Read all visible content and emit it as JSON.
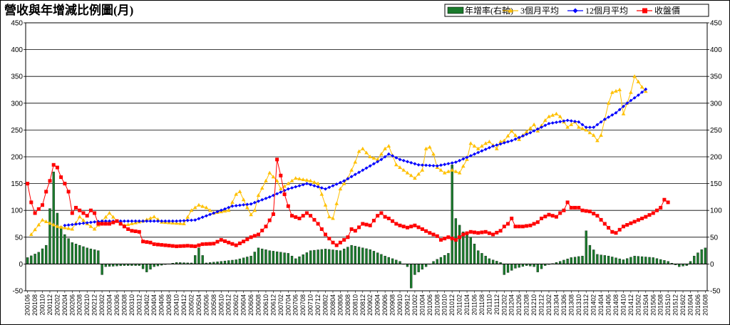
{
  "chart_data": {
    "type": "bar-line-combo",
    "title": "營收與年增減比例圖(月)",
    "legend_position": "top-right",
    "grid": true,
    "y_left": {
      "min": -50,
      "max": 450,
      "ticks": [
        -50,
        0,
        50,
        100,
        150,
        200,
        250,
        300,
        350,
        400,
        450
      ]
    },
    "y_right": {
      "min": -50,
      "max": 450,
      "ticks": [
        -50,
        0,
        50,
        100,
        150,
        200,
        250,
        300,
        350,
        400,
        450
      ]
    },
    "start_month": "200106",
    "months_count": 183,
    "x_tick_labels": [
      "200106",
      "200108",
      "200110",
      "200112",
      "200202",
      "200204",
      "200206",
      "200208",
      "200210",
      "200212",
      "200302",
      "200304",
      "200306",
      "200308",
      "200310",
      "200312",
      "200402",
      "200404",
      "200406",
      "200408",
      "200410",
      "200412",
      "200502",
      "200504",
      "200506",
      "200508",
      "200510",
      "200512",
      "200602",
      "200604",
      "200606",
      "200608",
      "200610",
      "200612",
      "200702",
      "200704",
      "200706",
      "200708",
      "200710",
      "200712",
      "200802",
      "200804",
      "200806",
      "200808",
      "200810",
      "200812",
      "200902",
      "200904",
      "200906",
      "200908",
      "200910",
      "200912",
      "201002",
      "201004",
      "201006",
      "201008",
      "201010",
      "201012",
      "201102",
      "201104",
      "201106",
      "201108",
      "201110",
      "201112",
      "201202",
      "201204",
      "201206",
      "201208",
      "201210",
      "201212",
      "201302",
      "201304",
      "201306",
      "201308",
      "201310",
      "201312",
      "201402",
      "201404",
      "201406",
      "201408",
      "201410",
      "201412",
      "201502",
      "201504",
      "201506",
      "201508",
      "201510",
      "201512",
      "201602",
      "201604",
      "201606",
      "201608"
    ],
    "series": [
      {
        "name": "年增率(右軸)",
        "kind": "bar",
        "axis": "right",
        "color": "#1a7a2c",
        "anchors": [
          [
            0,
            12
          ],
          [
            3,
            22
          ],
          [
            5,
            35
          ],
          [
            7,
            172
          ],
          [
            8,
            95
          ],
          [
            9,
            70
          ],
          [
            10,
            55
          ],
          [
            12,
            40
          ],
          [
            16,
            30
          ],
          [
            19,
            25
          ],
          [
            20,
            -20
          ],
          [
            21,
            -5
          ],
          [
            26,
            -3
          ],
          [
            30,
            -3
          ],
          [
            32,
            -15
          ],
          [
            34,
            -5
          ],
          [
            40,
            3
          ],
          [
            44,
            2
          ],
          [
            46,
            30
          ],
          [
            48,
            2
          ],
          [
            56,
            8
          ],
          [
            60,
            15
          ],
          [
            62,
            30
          ],
          [
            65,
            25
          ],
          [
            70,
            20
          ],
          [
            72,
            10
          ],
          [
            76,
            25
          ],
          [
            80,
            28
          ],
          [
            84,
            25
          ],
          [
            87,
            35
          ],
          [
            92,
            27
          ],
          [
            96,
            15
          ],
          [
            100,
            5
          ],
          [
            102,
            -5
          ],
          [
            103,
            -45
          ],
          [
            104,
            -20
          ],
          [
            106,
            -10
          ],
          [
            109,
            5
          ],
          [
            113,
            20
          ],
          [
            114,
            185
          ],
          [
            115,
            85
          ],
          [
            117,
            60
          ],
          [
            119,
            50
          ],
          [
            121,
            25
          ],
          [
            124,
            10
          ],
          [
            127,
            3
          ],
          [
            128,
            -20
          ],
          [
            131,
            -8
          ],
          [
            134,
            -3
          ],
          [
            136,
            -5
          ],
          [
            137,
            -15
          ],
          [
            139,
            -3
          ],
          [
            143,
            5
          ],
          [
            146,
            12
          ],
          [
            149,
            15
          ],
          [
            150,
            62
          ],
          [
            151,
            35
          ],
          [
            153,
            18
          ],
          [
            156,
            15
          ],
          [
            160,
            8
          ],
          [
            163,
            15
          ],
          [
            168,
            12
          ],
          [
            172,
            5
          ],
          [
            175,
            -5
          ],
          [
            177,
            -3
          ],
          [
            178,
            5
          ],
          [
            179,
            15
          ],
          [
            181,
            27
          ],
          [
            182,
            30
          ]
        ]
      },
      {
        "name": "3個月平均",
        "kind": "line",
        "axis": "left",
        "color": "#ffc000",
        "anchors": [
          [
            1,
            55
          ],
          [
            4,
            82
          ],
          [
            8,
            70
          ],
          [
            12,
            65
          ],
          [
            14,
            88
          ],
          [
            16,
            75
          ],
          [
            18,
            65
          ],
          [
            22,
            95
          ],
          [
            24,
            80
          ],
          [
            26,
            72
          ],
          [
            31,
            80
          ],
          [
            34,
            88
          ],
          [
            36,
            78
          ],
          [
            42,
            75
          ],
          [
            44,
            100
          ],
          [
            46,
            110
          ],
          [
            48,
            105
          ],
          [
            50,
            95
          ],
          [
            54,
            100
          ],
          [
            56,
            130
          ],
          [
            57,
            135
          ],
          [
            59,
            105
          ],
          [
            60,
            92
          ],
          [
            61,
            100
          ],
          [
            62,
            128
          ],
          [
            64,
            155
          ],
          [
            65,
            170
          ],
          [
            67,
            155
          ],
          [
            68,
            140
          ],
          [
            70,
            150
          ],
          [
            72,
            160
          ],
          [
            76,
            155
          ],
          [
            78,
            150
          ],
          [
            80,
            110
          ],
          [
            81,
            88
          ],
          [
            82,
            85
          ],
          [
            84,
            140
          ],
          [
            86,
            160
          ],
          [
            88,
            190
          ],
          [
            89,
            210
          ],
          [
            90,
            215
          ],
          [
            92,
            200
          ],
          [
            94,
            195
          ],
          [
            96,
            215
          ],
          [
            97,
            220
          ],
          [
            99,
            185
          ],
          [
            102,
            170
          ],
          [
            104,
            160
          ],
          [
            106,
            175
          ],
          [
            107,
            215
          ],
          [
            108,
            218
          ],
          [
            109,
            205
          ],
          [
            110,
            180
          ],
          [
            112,
            170
          ],
          [
            114,
            175
          ],
          [
            116,
            170
          ],
          [
            118,
            195
          ],
          [
            119,
            225
          ],
          [
            121,
            215
          ],
          [
            123,
            225
          ],
          [
            124,
            228
          ],
          [
            126,
            215
          ],
          [
            127,
            228
          ],
          [
            128,
            230
          ],
          [
            130,
            248
          ],
          [
            132,
            232
          ],
          [
            133,
            240
          ],
          [
            136,
            260
          ],
          [
            137,
            248
          ],
          [
            139,
            268
          ],
          [
            140,
            275
          ],
          [
            142,
            280
          ],
          [
            143,
            275
          ],
          [
            145,
            255
          ],
          [
            147,
            265
          ],
          [
            148,
            255
          ],
          [
            150,
            250
          ],
          [
            152,
            240
          ],
          [
            153,
            230
          ],
          [
            154,
            240
          ],
          [
            155,
            270
          ],
          [
            156,
            300
          ],
          [
            157,
            320
          ],
          [
            159,
            325
          ],
          [
            160,
            280
          ],
          [
            162,
            320
          ],
          [
            163,
            350
          ],
          [
            165,
            330
          ],
          [
            166,
            322
          ]
        ]
      },
      {
        "name": "12個月平均",
        "kind": "line",
        "axis": "left",
        "color": "#0000ff",
        "anchors": [
          [
            10,
            72
          ],
          [
            20,
            80
          ],
          [
            30,
            80
          ],
          [
            40,
            80
          ],
          [
            45,
            82
          ],
          [
            50,
            95
          ],
          [
            55,
            108
          ],
          [
            60,
            112
          ],
          [
            65,
            125
          ],
          [
            70,
            140
          ],
          [
            75,
            150
          ],
          [
            80,
            140
          ],
          [
            85,
            155
          ],
          [
            90,
            175
          ],
          [
            95,
            195
          ],
          [
            97,
            205
          ],
          [
            100,
            195
          ],
          [
            105,
            185
          ],
          [
            110,
            183
          ],
          [
            115,
            190
          ],
          [
            120,
            205
          ],
          [
            125,
            220
          ],
          [
            130,
            230
          ],
          [
            135,
            245
          ],
          [
            140,
            262
          ],
          [
            145,
            268
          ],
          [
            148,
            265
          ],
          [
            150,
            255
          ],
          [
            152,
            255
          ],
          [
            155,
            270
          ],
          [
            158,
            282
          ],
          [
            161,
            300
          ],
          [
            164,
            315
          ],
          [
            166,
            326
          ]
        ]
      },
      {
        "name": "收盤價",
        "kind": "line",
        "axis": "left",
        "color": "#ff0000",
        "anchors": [
          [
            0,
            150
          ],
          [
            1,
            115
          ],
          [
            2,
            95
          ],
          [
            4,
            110
          ],
          [
            5,
            135
          ],
          [
            6,
            155
          ],
          [
            7,
            185
          ],
          [
            8,
            180
          ],
          [
            9,
            162
          ],
          [
            10,
            150
          ],
          [
            11,
            135
          ],
          [
            12,
            95
          ],
          [
            13,
            105
          ],
          [
            14,
            100
          ],
          [
            16,
            90
          ],
          [
            17,
            100
          ],
          [
            18,
            95
          ],
          [
            19,
            75
          ],
          [
            22,
            75
          ],
          [
            24,
            80
          ],
          [
            25,
            75
          ],
          [
            27,
            65
          ],
          [
            28,
            62
          ],
          [
            30,
            60
          ],
          [
            31,
            42
          ],
          [
            33,
            40
          ],
          [
            34,
            37
          ],
          [
            37,
            35
          ],
          [
            40,
            33
          ],
          [
            43,
            34
          ],
          [
            45,
            33
          ],
          [
            47,
            37
          ],
          [
            50,
            38
          ],
          [
            52,
            45
          ],
          [
            54,
            40
          ],
          [
            56,
            35
          ],
          [
            58,
            42
          ],
          [
            60,
            50
          ],
          [
            62,
            55
          ],
          [
            64,
            70
          ],
          [
            66,
            93
          ],
          [
            67,
            195
          ],
          [
            68,
            165
          ],
          [
            69,
            130
          ],
          [
            70,
            108
          ],
          [
            71,
            90
          ],
          [
            73,
            85
          ],
          [
            75,
            95
          ],
          [
            76,
            90
          ],
          [
            78,
            75
          ],
          [
            80,
            55
          ],
          [
            82,
            40
          ],
          [
            83,
            35
          ],
          [
            84,
            40
          ],
          [
            86,
            50
          ],
          [
            87,
            65
          ],
          [
            88,
            62
          ],
          [
            90,
            75
          ],
          [
            92,
            72
          ],
          [
            94,
            90
          ],
          [
            95,
            95
          ],
          [
            96,
            88
          ],
          [
            97,
            85
          ],
          [
            99,
            75
          ],
          [
            100,
            72
          ],
          [
            102,
            68
          ],
          [
            104,
            72
          ],
          [
            106,
            65
          ],
          [
            108,
            58
          ],
          [
            110,
            52
          ],
          [
            111,
            45
          ],
          [
            113,
            50
          ],
          [
            115,
            45
          ],
          [
            117,
            55
          ],
          [
            119,
            60
          ],
          [
            121,
            58
          ],
          [
            123,
            60
          ],
          [
            125,
            55
          ],
          [
            127,
            62
          ],
          [
            128,
            70
          ],
          [
            129,
            75
          ],
          [
            130,
            85
          ],
          [
            131,
            70
          ],
          [
            133,
            70
          ],
          [
            135,
            72
          ],
          [
            137,
            78
          ],
          [
            138,
            85
          ],
          [
            140,
            92
          ],
          [
            142,
            88
          ],
          [
            143,
            95
          ],
          [
            144,
            100
          ],
          [
            145,
            115
          ],
          [
            146,
            105
          ],
          [
            148,
            105
          ],
          [
            149,
            100
          ],
          [
            151,
            98
          ],
          [
            153,
            90
          ],
          [
            155,
            75
          ],
          [
            157,
            60
          ],
          [
            158,
            58
          ],
          [
            160,
            70
          ],
          [
            162,
            76
          ],
          [
            164,
            82
          ],
          [
            166,
            88
          ],
          [
            168,
            95
          ],
          [
            170,
            105
          ],
          [
            171,
            120
          ],
          [
            172,
            115
          ]
        ]
      }
    ]
  }
}
